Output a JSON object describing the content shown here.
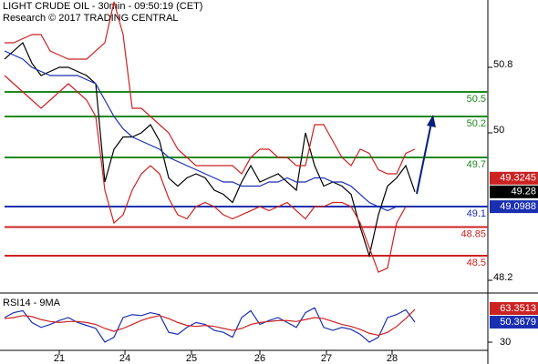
{
  "chart_data": {
    "type": "line",
    "title": "LIGHT CRUDE OIL - 30min - 09:50:19 (CET)",
    "subtitle": "Research © 2017 TRADING CENTRAL",
    "xlim": [
      0,
      107
    ],
    "xticks": [
      {
        "value": 13,
        "label": "21"
      },
      {
        "value": 27.4,
        "label": "24"
      },
      {
        "value": 42,
        "label": "25"
      },
      {
        "value": 57,
        "label": "26"
      },
      {
        "value": 71.6,
        "label": "27"
      },
      {
        "value": 86,
        "label": "28"
      }
    ],
    "ylim": [
      48.067,
      51.622
    ],
    "yticks": [
      48.2,
      50,
      50.8
    ],
    "x": [
      1,
      3,
      5,
      7,
      9,
      11,
      13,
      15,
      17,
      19,
      21,
      23,
      25,
      27,
      29,
      31,
      33,
      35,
      37,
      39,
      41,
      43,
      45,
      47,
      49,
      51,
      53,
      55,
      57,
      59,
      61,
      63,
      65,
      67,
      69,
      71,
      73,
      75,
      77,
      79,
      81,
      83,
      85,
      87,
      89,
      91
    ],
    "series": [
      {
        "color": "#000000",
        "values": [
          50.9,
          51.0,
          51.1,
          50.85,
          50.7,
          50.75,
          50.8,
          50.8,
          50.75,
          50.7,
          50.6,
          49.4,
          49.8,
          49.95,
          49.95,
          50.0,
          50.1,
          49.9,
          49.45,
          49.35,
          49.45,
          49.5,
          49.45,
          49.3,
          49.25,
          49.15,
          49.4,
          49.6,
          49.4,
          49.45,
          49.5,
          49.4,
          49.3,
          50.0,
          49.6,
          49.35,
          49.4,
          49.35,
          49.25,
          48.85,
          48.5,
          49.0,
          49.35,
          49.45,
          49.6,
          49.28
        ]
      },
      {
        "color": "#cc2222",
        "values": [
          51.1,
          51.1,
          51.15,
          51.2,
          51.2,
          51.0,
          50.95,
          50.9,
          50.9,
          50.9,
          51.0,
          51.1,
          51.6,
          51.2,
          50.3,
          50.3,
          50.2,
          50.1,
          50.0,
          49.8,
          49.7,
          49.6,
          49.6,
          49.6,
          49.6,
          49.6,
          49.5,
          49.7,
          49.8,
          49.8,
          49.7,
          49.7,
          49.6,
          49.6,
          50.1,
          50.1,
          49.9,
          49.7,
          49.6,
          49.8,
          49.75,
          49.55,
          49.5,
          49.5,
          49.75,
          49.8
        ]
      },
      {
        "color": "#cc2222",
        "values": [
          50.7,
          50.6,
          50.5,
          50.4,
          50.3,
          50.4,
          50.5,
          50.6,
          50.5,
          50.4,
          50.2,
          49.3,
          48.9,
          49.0,
          49.3,
          49.5,
          49.6,
          49.5,
          49.2,
          49.0,
          48.95,
          49.1,
          49.15,
          49.1,
          49.0,
          48.95,
          49.0,
          49.05,
          49.1,
          49.05,
          49.1,
          49.15,
          49.05,
          48.95,
          49.1,
          49.1,
          49.15,
          49.15,
          49.1,
          48.9,
          48.6,
          48.3,
          48.35,
          48.9,
          49.1,
          49.1
        ]
      },
      {
        "color": "#1a2fb0",
        "values": [
          51.0,
          50.95,
          50.9,
          50.8,
          50.75,
          50.7,
          50.7,
          50.7,
          50.7,
          50.65,
          50.6,
          50.4,
          50.2,
          50.05,
          49.95,
          49.9,
          49.85,
          49.8,
          49.7,
          49.65,
          49.6,
          49.55,
          49.5,
          49.45,
          49.4,
          49.4,
          49.35,
          49.35,
          49.35,
          49.4,
          49.4,
          49.45,
          49.4,
          49.4,
          49.45,
          49.45,
          49.4,
          49.4,
          49.35,
          49.25,
          49.15,
          49.1,
          49.05,
          49.1,
          49.1,
          49.1
        ]
      }
    ],
    "levels": [
      {
        "value": 50.5,
        "color": "#1f8a1f"
      },
      {
        "value": 50.2,
        "color": "#1f8a1f"
      },
      {
        "value": 49.7,
        "color": "#1f8a1f"
      },
      {
        "value": 49.1,
        "color": "#1a2fb0"
      },
      {
        "value": 48.85,
        "color": "#cc2222"
      },
      {
        "value": 48.5,
        "color": "#cc2222"
      }
    ],
    "markers": [
      {
        "value": 49.3245,
        "color": "#cc2222"
      },
      {
        "value": 49.28,
        "color": "#000000"
      },
      {
        "value": 49.0988,
        "color": "#1a2fb0"
      }
    ],
    "rsi": {
      "title": "RSI14 - 9MA",
      "ylim": [
        12.4,
        77.2
      ],
      "yticks": [
        30
      ],
      "series": [
        {
          "color": "#1a2fb0",
          "values": [
            55,
            60,
            62,
            50,
            45,
            48,
            52,
            55,
            50,
            47,
            44,
            30,
            35,
            55,
            58,
            57,
            60,
            58,
            40,
            38,
            45,
            50,
            48,
            42,
            40,
            35,
            55,
            62,
            48,
            52,
            55,
            50,
            45,
            60,
            65,
            45,
            42,
            45,
            43,
            38,
            30,
            35,
            55,
            58,
            63,
            50.3679
          ]
        },
        {
          "color": "#cc2222",
          "values": [
            54,
            55,
            57,
            56,
            53,
            51,
            50,
            51,
            51,
            50,
            48,
            44,
            41,
            44,
            48,
            52,
            55,
            57,
            54,
            50,
            47,
            46,
            47,
            46,
            44,
            42,
            44,
            48,
            50,
            51,
            52,
            52,
            51,
            53,
            55,
            54,
            51,
            48,
            46,
            43,
            39,
            37,
            40,
            46,
            54,
            63.3513
          ]
        }
      ],
      "markers": [
        {
          "value": 63.3513,
          "color": "#cc2222"
        },
        {
          "value": 50.3679,
          "color": "#1a2fb0"
        }
      ]
    }
  }
}
